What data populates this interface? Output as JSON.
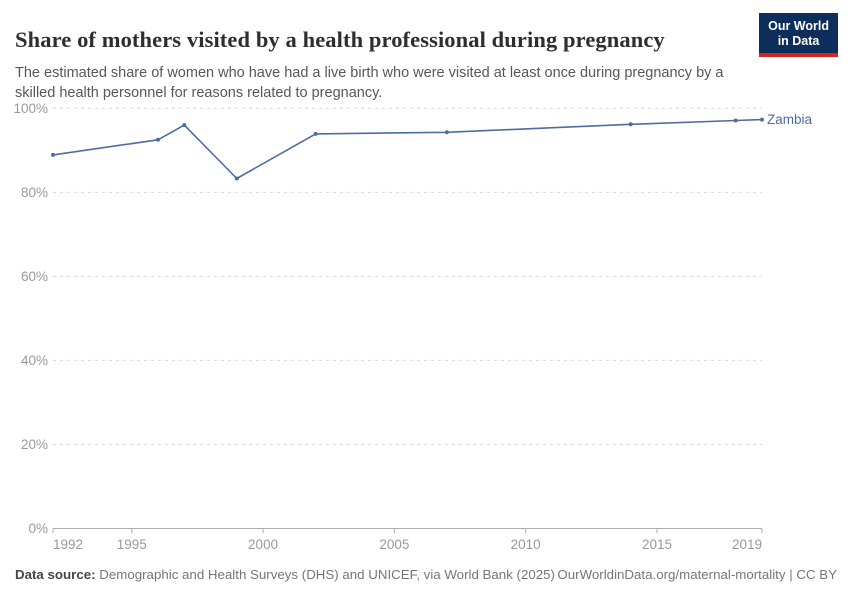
{
  "header": {
    "title": "Share of mothers visited by a health professional during pregnancy",
    "subtitle": "The estimated share of women who have had a live birth who were visited at least once during pregnancy by a skilled health personnel for reasons related to pregnancy."
  },
  "logo": {
    "line1": "Our World",
    "line2": "in Data"
  },
  "colors": {
    "line": "#4e6ba5",
    "grid": "#d9d9d9",
    "axis": "#adadad",
    "tick_text": "#999999",
    "logo_navy": "#0d2e5a",
    "logo_red": "#d4251c"
  },
  "chart_data": {
    "type": "line",
    "title": "Share of mothers visited by a health professional during pregnancy",
    "xlabel": "",
    "ylabel": "",
    "xlim": [
      1992,
      2019
    ],
    "ylim": [
      0,
      100
    ],
    "grid": true,
    "legend_position": "end-of-line-label",
    "entity_label": "Zambia",
    "series": [
      {
        "name": "Zambia",
        "color": "#4e6ba5",
        "points": [
          {
            "year": 1992,
            "value": 88.9
          },
          {
            "year": 1996,
            "value": 92.5
          },
          {
            "year": 1997,
            "value": 96.0
          },
          {
            "year": 1999,
            "value": 83.3
          },
          {
            "year": 2002,
            "value": 93.9
          },
          {
            "year": 2007,
            "value": 94.3
          },
          {
            "year": 2014,
            "value": 96.2
          },
          {
            "year": 2018,
            "value": 97.1
          },
          {
            "year": 2019,
            "value": 97.3
          }
        ]
      }
    ],
    "xticks": [
      {
        "year": 1992,
        "label": "1992"
      },
      {
        "year": 1995,
        "label": "1995"
      },
      {
        "year": 2000,
        "label": "2000"
      },
      {
        "year": 2005,
        "label": "2005"
      },
      {
        "year": 2010,
        "label": "2010"
      },
      {
        "year": 2015,
        "label": "2015"
      },
      {
        "year": 2019,
        "label": "2019"
      }
    ],
    "yticks": [
      {
        "value": 0,
        "label": "0%"
      },
      {
        "value": 20,
        "label": "20%"
      },
      {
        "value": 40,
        "label": "40%"
      },
      {
        "value": 60,
        "label": "60%"
      },
      {
        "value": 80,
        "label": "80%"
      },
      {
        "value": 100,
        "label": "100%"
      }
    ]
  },
  "footer": {
    "datasource_label": "Data source:",
    "datasource_text": " Demographic and Health Surveys (DHS) and UNICEF, via World Bank (2025)",
    "right_text": "OurWorldinData.org/maternal-mortality | CC BY"
  }
}
